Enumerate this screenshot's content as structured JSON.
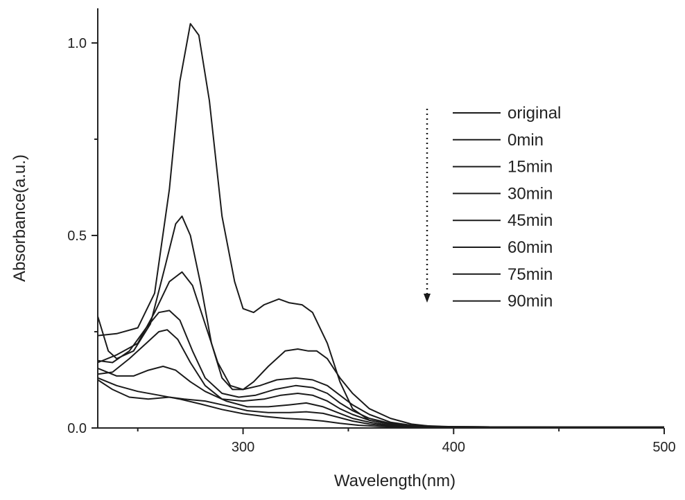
{
  "chart_data": {
    "type": "line",
    "xlabel": "Wavelength(nm)",
    "ylabel": "Absorbance(a.u.)",
    "xlim": [
      231,
      500
    ],
    "ylim": [
      0,
      1.09
    ],
    "xticks": [
      300,
      400,
      500
    ],
    "xticks_minor": [
      250,
      350,
      450
    ],
    "yticks": [
      0.0,
      0.5,
      1.0
    ],
    "ytick_labels": [
      "0.0",
      "0.5",
      "1.0"
    ],
    "grid": false,
    "legend_position": "top-right",
    "legend_arrow": "downward dotted arrow",
    "line_color": "#1a1a1a",
    "series": [
      {
        "name": "original",
        "points": [
          [
            231,
            0.24
          ],
          [
            240,
            0.245
          ],
          [
            250,
            0.26
          ],
          [
            258,
            0.35
          ],
          [
            265,
            0.62
          ],
          [
            270,
            0.9
          ],
          [
            275,
            1.05
          ],
          [
            279,
            1.02
          ],
          [
            284,
            0.85
          ],
          [
            290,
            0.55
          ],
          [
            296,
            0.38
          ],
          [
            300,
            0.31
          ],
          [
            305,
            0.3
          ],
          [
            310,
            0.32
          ],
          [
            317,
            0.335
          ],
          [
            322,
            0.325
          ],
          [
            328,
            0.32
          ],
          [
            333,
            0.3
          ],
          [
            340,
            0.22
          ],
          [
            346,
            0.12
          ],
          [
            352,
            0.05
          ],
          [
            360,
            0.02
          ],
          [
            370,
            0.01
          ],
          [
            380,
            0.005
          ],
          [
            400,
            0.003
          ],
          [
            450,
            0.002
          ],
          [
            500,
            0.002
          ]
        ]
      },
      {
        "name": "0min",
        "points": [
          [
            231,
            0.29
          ],
          [
            236,
            0.2
          ],
          [
            240,
            0.18
          ],
          [
            248,
            0.2
          ],
          [
            256,
            0.27
          ],
          [
            263,
            0.42
          ],
          [
            268,
            0.53
          ],
          [
            271,
            0.55
          ],
          [
            275,
            0.5
          ],
          [
            280,
            0.37
          ],
          [
            285,
            0.22
          ],
          [
            290,
            0.13
          ],
          [
            295,
            0.1
          ],
          [
            300,
            0.1
          ],
          [
            305,
            0.12
          ],
          [
            312,
            0.16
          ],
          [
            320,
            0.2
          ],
          [
            326,
            0.205
          ],
          [
            331,
            0.2
          ],
          [
            335,
            0.2
          ],
          [
            340,
            0.18
          ],
          [
            346,
            0.13
          ],
          [
            352,
            0.09
          ],
          [
            360,
            0.05
          ],
          [
            370,
            0.025
          ],
          [
            380,
            0.01
          ],
          [
            390,
            0.004
          ],
          [
            400,
            0.003
          ],
          [
            450,
            0.002
          ],
          [
            500,
            0.002
          ]
        ]
      },
      {
        "name": "15min",
        "points": [
          [
            231,
            0.17
          ],
          [
            240,
            0.19
          ],
          [
            250,
            0.22
          ],
          [
            258,
            0.3
          ],
          [
            265,
            0.38
          ],
          [
            271,
            0.405
          ],
          [
            276,
            0.37
          ],
          [
            282,
            0.27
          ],
          [
            288,
            0.17
          ],
          [
            294,
            0.11
          ],
          [
            300,
            0.1
          ],
          [
            308,
            0.11
          ],
          [
            316,
            0.125
          ],
          [
            325,
            0.13
          ],
          [
            333,
            0.125
          ],
          [
            340,
            0.11
          ],
          [
            346,
            0.085
          ],
          [
            352,
            0.06
          ],
          [
            360,
            0.035
          ],
          [
            370,
            0.015
          ],
          [
            380,
            0.007
          ],
          [
            400,
            0.003
          ],
          [
            450,
            0.002
          ],
          [
            500,
            0.002
          ]
        ]
      },
      {
        "name": "30min",
        "points": [
          [
            231,
            0.175
          ],
          [
            238,
            0.17
          ],
          [
            246,
            0.2
          ],
          [
            254,
            0.26
          ],
          [
            260,
            0.3
          ],
          [
            265,
            0.305
          ],
          [
            270,
            0.28
          ],
          [
            276,
            0.2
          ],
          [
            282,
            0.13
          ],
          [
            290,
            0.09
          ],
          [
            298,
            0.08
          ],
          [
            306,
            0.085
          ],
          [
            315,
            0.1
          ],
          [
            325,
            0.11
          ],
          [
            333,
            0.105
          ],
          [
            340,
            0.09
          ],
          [
            346,
            0.065
          ],
          [
            352,
            0.045
          ],
          [
            360,
            0.025
          ],
          [
            370,
            0.012
          ],
          [
            380,
            0.005
          ],
          [
            400,
            0.003
          ],
          [
            450,
            0.002
          ],
          [
            500,
            0.002
          ]
        ]
      },
      {
        "name": "45min",
        "points": [
          [
            231,
            0.14
          ],
          [
            238,
            0.145
          ],
          [
            246,
            0.18
          ],
          [
            254,
            0.22
          ],
          [
            260,
            0.25
          ],
          [
            264,
            0.255
          ],
          [
            269,
            0.23
          ],
          [
            275,
            0.17
          ],
          [
            282,
            0.11
          ],
          [
            290,
            0.075
          ],
          [
            300,
            0.07
          ],
          [
            310,
            0.075
          ],
          [
            318,
            0.085
          ],
          [
            326,
            0.09
          ],
          [
            333,
            0.085
          ],
          [
            340,
            0.07
          ],
          [
            346,
            0.05
          ],
          [
            352,
            0.035
          ],
          [
            360,
            0.02
          ],
          [
            370,
            0.01
          ],
          [
            380,
            0.004
          ],
          [
            400,
            0.003
          ],
          [
            450,
            0.002
          ],
          [
            500,
            0.002
          ]
        ]
      },
      {
        "name": "60min",
        "points": [
          [
            231,
            0.155
          ],
          [
            240,
            0.135
          ],
          [
            248,
            0.135
          ],
          [
            255,
            0.15
          ],
          [
            262,
            0.16
          ],
          [
            268,
            0.15
          ],
          [
            275,
            0.12
          ],
          [
            282,
            0.095
          ],
          [
            292,
            0.07
          ],
          [
            302,
            0.055
          ],
          [
            312,
            0.055
          ],
          [
            322,
            0.06
          ],
          [
            330,
            0.065
          ],
          [
            338,
            0.055
          ],
          [
            345,
            0.04
          ],
          [
            352,
            0.025
          ],
          [
            360,
            0.015
          ],
          [
            370,
            0.007
          ],
          [
            380,
            0.003
          ],
          [
            400,
            0.002
          ],
          [
            450,
            0.002
          ],
          [
            500,
            0.002
          ]
        ]
      },
      {
        "name": "75min",
        "points": [
          [
            231,
            0.125
          ],
          [
            238,
            0.1
          ],
          [
            246,
            0.08
          ],
          [
            255,
            0.075
          ],
          [
            265,
            0.08
          ],
          [
            272,
            0.075
          ],
          [
            282,
            0.07
          ],
          [
            292,
            0.058
          ],
          [
            302,
            0.045
          ],
          [
            312,
            0.04
          ],
          [
            322,
            0.04
          ],
          [
            330,
            0.042
          ],
          [
            338,
            0.038
          ],
          [
            345,
            0.028
          ],
          [
            352,
            0.018
          ],
          [
            360,
            0.01
          ],
          [
            370,
            0.005
          ],
          [
            400,
            0.002
          ],
          [
            450,
            0.002
          ],
          [
            500,
            0.002
          ]
        ]
      },
      {
        "name": "90min",
        "points": [
          [
            231,
            0.13
          ],
          [
            240,
            0.11
          ],
          [
            250,
            0.095
          ],
          [
            260,
            0.085
          ],
          [
            270,
            0.075
          ],
          [
            280,
            0.062
          ],
          [
            290,
            0.048
          ],
          [
            300,
            0.037
          ],
          [
            310,
            0.03
          ],
          [
            320,
            0.025
          ],
          [
            330,
            0.022
          ],
          [
            338,
            0.018
          ],
          [
            346,
            0.012
          ],
          [
            355,
            0.007
          ],
          [
            365,
            0.004
          ],
          [
            380,
            0.002
          ],
          [
            400,
            0.002
          ],
          [
            450,
            0.002
          ],
          [
            500,
            0.002
          ]
        ]
      }
    ]
  }
}
